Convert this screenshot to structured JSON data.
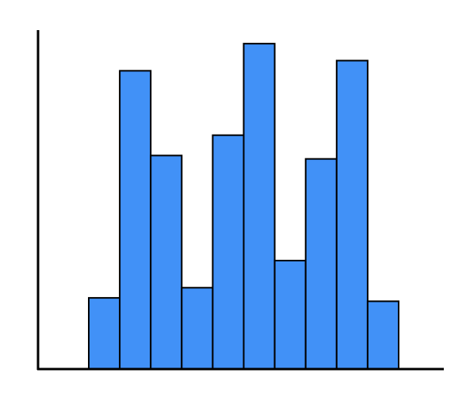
{
  "chart_data": {
    "type": "bar",
    "categories": [
      null,
      null,
      null,
      null,
      null,
      null,
      null,
      null,
      null,
      null
    ],
    "values": [
      21,
      88,
      63,
      24,
      69,
      96,
      32,
      62,
      91,
      20
    ],
    "color": "#4191f7",
    "ylim": [
      0,
      100
    ]
  }
}
